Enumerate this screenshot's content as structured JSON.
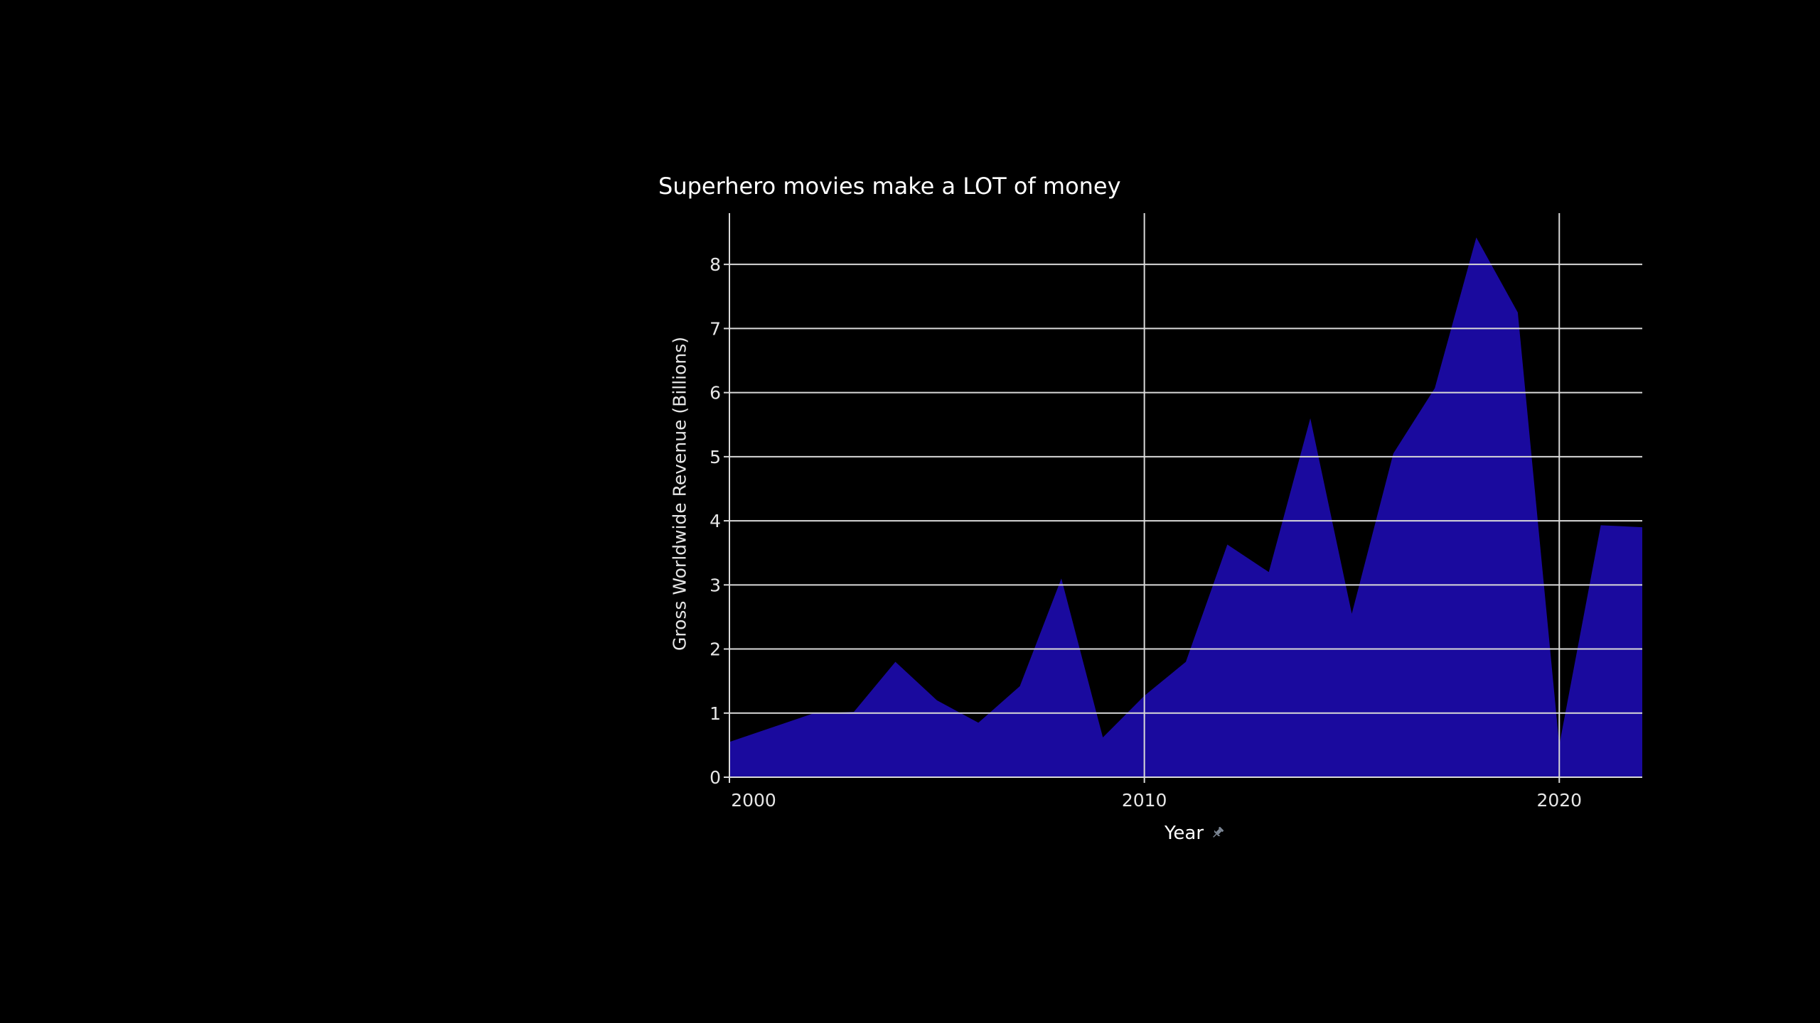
{
  "chart_data": {
    "type": "area",
    "title": "Superhero movies make a LOT of money",
    "xlabel": "Year",
    "ylabel": "Gross Worldwide Revenue (Billions)",
    "xlim": [
      2000,
      2022
    ],
    "ylim": [
      0,
      8.8
    ],
    "x_ticks": [
      2000,
      2010,
      2020
    ],
    "y_ticks": [
      0,
      1,
      2,
      3,
      4,
      5,
      6,
      7,
      8
    ],
    "grid": true,
    "x": [
      2000,
      2001,
      2002,
      2003,
      2004,
      2005,
      2006,
      2007,
      2008,
      2009,
      2010,
      2011,
      2012,
      2013,
      2014,
      2015,
      2016,
      2017,
      2018,
      2019,
      2020,
      2021,
      2022
    ],
    "y": [
      0.55,
      0.77,
      0.99,
      1.02,
      1.8,
      1.2,
      0.85,
      1.42,
      3.1,
      0.62,
      1.27,
      1.8,
      3.63,
      3.2,
      5.6,
      2.55,
      5.05,
      6.07,
      8.42,
      7.25,
      0.5,
      3.93,
      3.9
    ],
    "colors": {
      "area": "#1a0a9e",
      "grid": "#d9d9d9",
      "background": "#000000",
      "text": "#ffffff"
    },
    "x_label_icon": "pin-icon"
  }
}
